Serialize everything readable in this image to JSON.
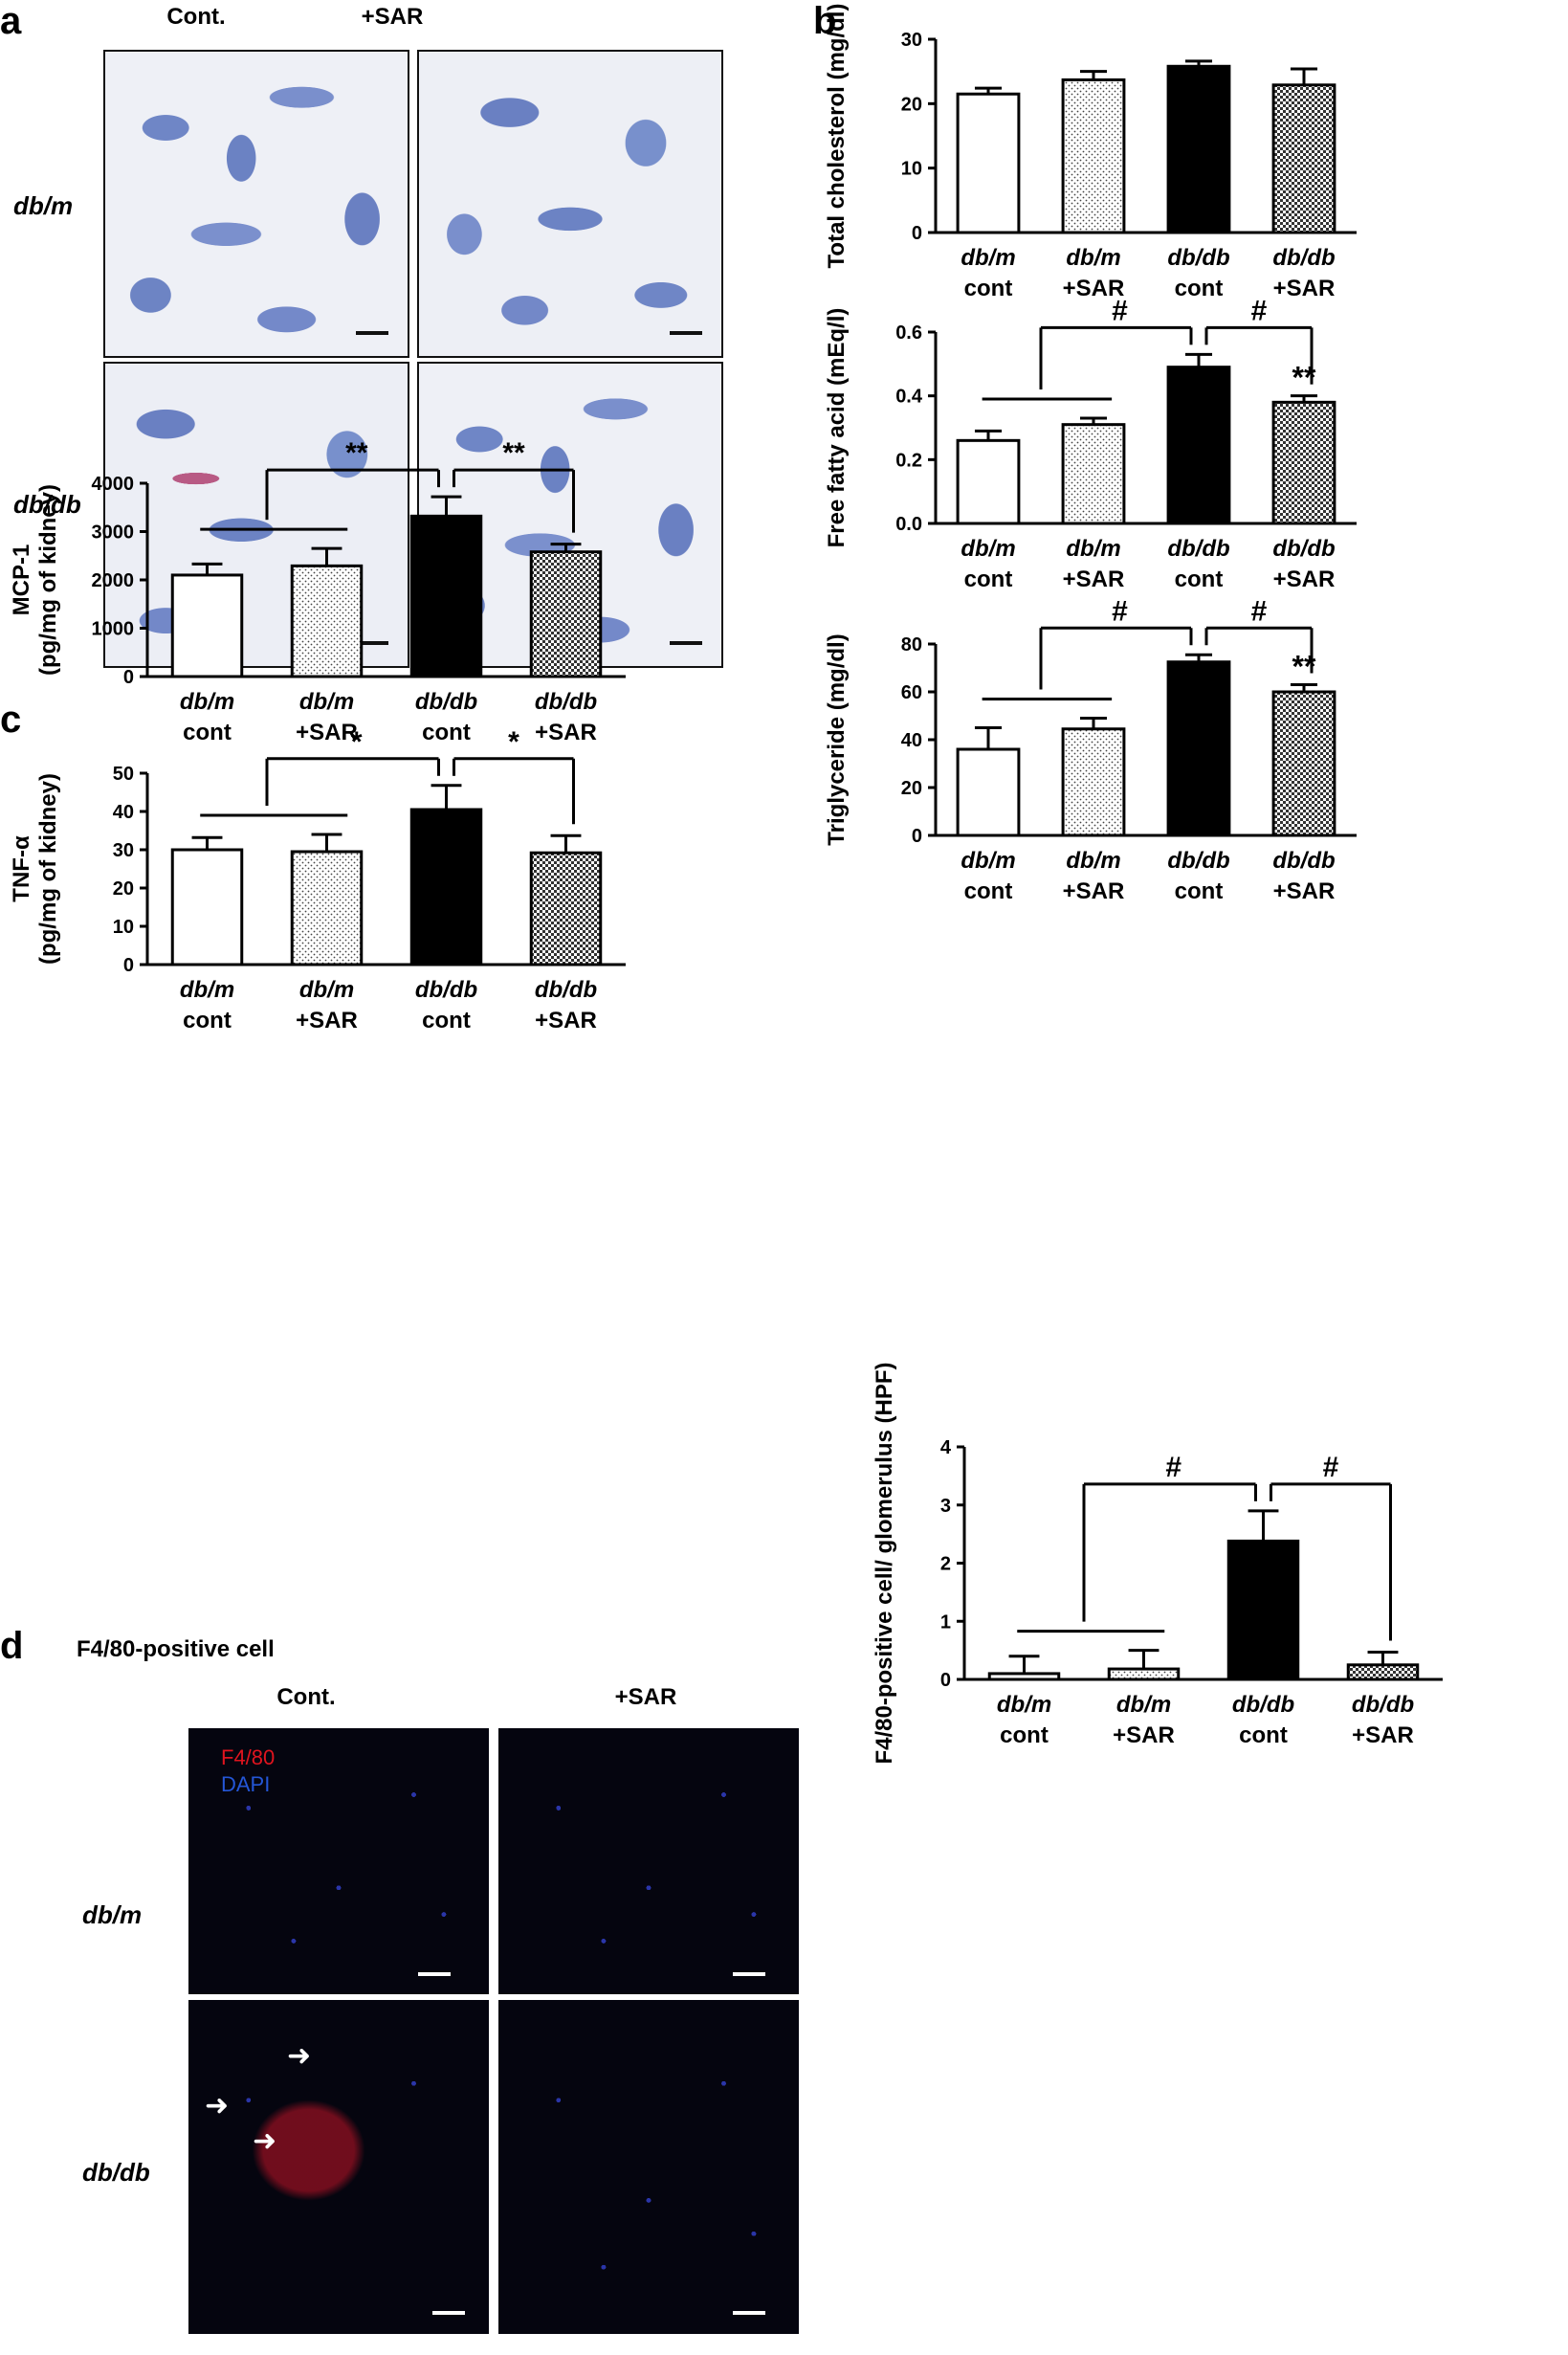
{
  "panels": {
    "a": {
      "letter": "a",
      "col_labels": [
        "Cont.",
        "+SAR"
      ],
      "row_labels": [
        "db/m",
        "db/db"
      ]
    },
    "b": {
      "letter": "b"
    },
    "c": {
      "letter": "c"
    },
    "d": {
      "letter": "d",
      "title": "F4/80-positive cell",
      "col_labels": [
        "Cont.",
        "+SAR"
      ],
      "row_labels": [
        "db/m",
        "db/db"
      ],
      "legend": [
        "F4/80",
        "DAPI"
      ]
    }
  },
  "colors": {
    "f4_80": "#e0141e",
    "dapi": "#2456d6"
  },
  "chart_data": [
    {
      "id": "total_cholesterol",
      "type": "bar",
      "categories": [
        [
          "db/m",
          "cont"
        ],
        [
          "db/m",
          "+SAR"
        ],
        [
          "db/db",
          "cont"
        ],
        [
          "db/db",
          "+SAR"
        ]
      ],
      "values": [
        21.5,
        23.7,
        25.8,
        22.9
      ],
      "errors": [
        0.9,
        1.3,
        0.8,
        2.5
      ],
      "ylabel": "Total cholesterol (mg/dl)",
      "ylim": [
        0,
        30
      ],
      "yticks": [
        "0",
        "10",
        "20",
        "30"
      ],
      "fills": [
        "white",
        "dots",
        "black",
        "checker"
      ],
      "annotations": []
    },
    {
      "id": "free_fatty_acid",
      "type": "bar",
      "categories": [
        [
          "db/m",
          "cont"
        ],
        [
          "db/m",
          "+SAR"
        ],
        [
          "db/db",
          "cont"
        ],
        [
          "db/db",
          "+SAR"
        ]
      ],
      "values": [
        0.26,
        0.31,
        0.49,
        0.38
      ],
      "errors": [
        0.03,
        0.02,
        0.04,
        0.02
      ],
      "ylabel": "Free fatty acid (mEq/l)",
      "ylim": [
        0,
        0.6
      ],
      "yticks": [
        "0.0",
        "0.2",
        "0.4",
        "0.6"
      ],
      "fills": [
        "white",
        "dots",
        "black",
        "checker"
      ],
      "annotations": [
        "#",
        "#",
        "**"
      ]
    },
    {
      "id": "triglyceride",
      "type": "bar",
      "categories": [
        [
          "db/m",
          "cont"
        ],
        [
          "db/m",
          "+SAR"
        ],
        [
          "db/db",
          "cont"
        ],
        [
          "db/db",
          "+SAR"
        ]
      ],
      "values": [
        36,
        44.5,
        72.5,
        60
      ],
      "errors": [
        9,
        4.5,
        3,
        3
      ],
      "ylabel": "Triglyceride (mg/dl)",
      "ylim": [
        0,
        80
      ],
      "yticks": [
        "0",
        "20",
        "40",
        "60",
        "80"
      ],
      "fills": [
        "white",
        "dots",
        "black",
        "checker"
      ],
      "annotations": [
        "#",
        "#",
        "**"
      ]
    },
    {
      "id": "mcp1",
      "type": "bar",
      "categories": [
        [
          "db/m",
          "cont"
        ],
        [
          "db/m",
          "+SAR"
        ],
        [
          "db/db",
          "cont"
        ],
        [
          "db/db",
          "+SAR"
        ]
      ],
      "values": [
        2100,
        2290,
        3320,
        2580
      ],
      "errors": [
        230,
        360,
        400,
        160
      ],
      "ylabel": [
        "MCP-1",
        "(pg/mg of kidney)"
      ],
      "ylim": [
        0,
        4000
      ],
      "yticks": [
        "0",
        "1000",
        "2000",
        "3000",
        "4000"
      ],
      "fills": [
        "white",
        "dots",
        "black",
        "checker"
      ],
      "annotations": [
        "**",
        "**"
      ]
    },
    {
      "id": "tnf_alpha",
      "type": "bar",
      "categories": [
        [
          "db/m",
          "cont"
        ],
        [
          "db/m",
          "+SAR"
        ],
        [
          "db/db",
          "cont"
        ],
        [
          "db/db",
          "+SAR"
        ]
      ],
      "values": [
        30,
        29.5,
        40.5,
        29.2
      ],
      "errors": [
        3.2,
        4.5,
        6.3,
        4.5
      ],
      "ylabel": [
        "TNF-α",
        "(pg/mg of kidney)"
      ],
      "ylim": [
        0,
        50
      ],
      "yticks": [
        "0",
        "10",
        "20",
        "30",
        "40",
        "50"
      ],
      "fills": [
        "white",
        "dots",
        "black",
        "checker"
      ],
      "annotations": [
        "*",
        "*"
      ]
    },
    {
      "id": "f480_glomerulus",
      "type": "bar",
      "categories": [
        [
          "db/m",
          "cont"
        ],
        [
          "db/m",
          "+SAR"
        ],
        [
          "db/db",
          "cont"
        ],
        [
          "db/db",
          "+SAR"
        ]
      ],
      "values": [
        0.1,
        0.18,
        2.38,
        0.25
      ],
      "errors": [
        0.3,
        0.32,
        0.52,
        0.22
      ],
      "ylabel": "F4/80-positive cell/ glomerulus (HPF)",
      "ylim": [
        0,
        4
      ],
      "yticks": [
        "0",
        "1",
        "2",
        "3",
        "4"
      ],
      "fills": [
        "white",
        "dots",
        "black",
        "checker"
      ],
      "annotations": [
        "#",
        "#"
      ]
    }
  ]
}
